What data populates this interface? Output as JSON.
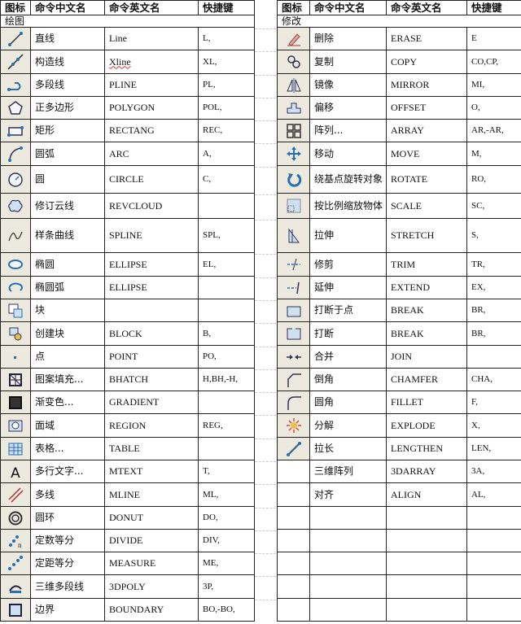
{
  "headers": {
    "icon": "图标",
    "zh": "命令中文名",
    "en": "命令英文名",
    "key": "快捷键"
  },
  "left": {
    "section": "绘图",
    "rows": [
      {
        "icon": "line-icon",
        "zh": "直线",
        "en": "Line",
        "key": "L,"
      },
      {
        "icon": "xline-icon",
        "zh": "构造线",
        "en": "Xline",
        "key": "XL,"
      },
      {
        "icon": "pline-icon",
        "zh": "多段线",
        "en": "PLINE",
        "key": "PL,"
      },
      {
        "icon": "polygon-icon",
        "zh": "正多边形",
        "en": "POLYGON",
        "key": "POL,"
      },
      {
        "icon": "rectangle-icon",
        "zh": "矩形",
        "en": "RECTANG",
        "key": "REC,"
      },
      {
        "icon": "arc-icon",
        "zh": "圆弧",
        "en": "ARC",
        "key": "A,"
      },
      {
        "icon": "circle-icon",
        "zh": "圆",
        "en": "CIRCLE",
        "key": "C,"
      },
      {
        "icon": "revcloud-icon",
        "zh": "修订云线",
        "en": "REVCLOUD",
        "key": ""
      },
      {
        "icon": "spline-icon",
        "zh": "样条曲线",
        "en": "SPLINE",
        "key": "SPL,"
      },
      {
        "icon": "ellipse-icon",
        "zh": "椭圆",
        "en": "ELLIPSE",
        "key": "EL,"
      },
      {
        "icon": "ellipse-arc-icon",
        "zh": "椭圆弧",
        "en": "ELLIPSE",
        "key": ""
      },
      {
        "icon": "block-insert-icon",
        "zh": "块",
        "en": "",
        "key": ""
      },
      {
        "icon": "create-block-icon",
        "zh": "创建块",
        "en": "BLOCK",
        "key": "B,"
      },
      {
        "icon": "point-icon",
        "zh": "点",
        "en": "POINT",
        "key": "PO,"
      },
      {
        "icon": "hatch-icon",
        "zh": "图案填充...",
        "en": "BHATCH",
        "key": "H,BH,-H,"
      },
      {
        "icon": "gradient-icon",
        "zh": "渐变色...",
        "en": "GRADIENT",
        "key": ""
      },
      {
        "icon": "region-icon",
        "zh": "面域",
        "en": "REGION",
        "key": "REG,"
      },
      {
        "icon": "table-icon",
        "zh": "表格...",
        "en": "TABLE",
        "key": ""
      },
      {
        "icon": "mtext-icon",
        "zh": "多行文字...",
        "en": "MTEXT",
        "key": "T,"
      },
      {
        "icon": "mline-icon",
        "zh": "多线",
        "en": "MLINE",
        "key": "ML,"
      },
      {
        "icon": "donut-icon",
        "zh": "圆环",
        "en": "DONUT",
        "key": "DO,"
      },
      {
        "icon": "divide-icon",
        "zh": "定数等分",
        "en": "DIVIDE",
        "key": "DIV,"
      },
      {
        "icon": "measure-icon",
        "zh": "定距等分",
        "en": "MEASURE",
        "key": "ME,"
      },
      {
        "icon": "3dpoly-icon",
        "zh": "三维多段线",
        "en": "3DPOLY",
        "key": "3P,"
      },
      {
        "icon": "boundary-icon",
        "zh": "边界",
        "en": "BOUNDARY",
        "key": "BO,-BO,"
      }
    ]
  },
  "right": {
    "section": "修改",
    "rows": [
      {
        "icon": "erase-icon",
        "zh": "删除",
        "en": "ERASE",
        "key": "E"
      },
      {
        "icon": "copy-icon",
        "zh": "复制",
        "en": "COPY",
        "key": "CO,CP,"
      },
      {
        "icon": "mirror-icon",
        "zh": "镜像",
        "en": "MIRROR",
        "key": "MI,"
      },
      {
        "icon": "offset-icon",
        "zh": "偏移",
        "en": "OFFSET",
        "key": "O,"
      },
      {
        "icon": "array-icon",
        "zh": "阵列...",
        "en": "ARRAY",
        "key": "AR,-AR,"
      },
      {
        "icon": "move-icon",
        "zh": "移动",
        "en": "MOVE",
        "key": "M,"
      },
      {
        "icon": "rotate-icon",
        "zh": "绕基点旋转对象",
        "en": "ROTATE",
        "key": "RO,"
      },
      {
        "icon": "scale-icon",
        "zh": "按比例缩放物体",
        "en": "SCALE",
        "key": "SC,"
      },
      {
        "icon": "stretch-icon",
        "zh": "拉伸",
        "en": "STRETCH",
        "key": "S,"
      },
      {
        "icon": "trim-icon",
        "zh": "修剪",
        "en": "TRIM",
        "key": "TR,"
      },
      {
        "icon": "extend-icon",
        "zh": "延伸",
        "en": "EXTEND",
        "key": "EX,"
      },
      {
        "icon": "break-at-point-icon",
        "zh": "打断于点",
        "en": "BREAK",
        "key": "BR,"
      },
      {
        "icon": "break-icon",
        "zh": "打断",
        "en": "BREAK",
        "key": "BR,"
      },
      {
        "icon": "join-icon",
        "zh": "合并",
        "en": "JOIN",
        "key": ""
      },
      {
        "icon": "chamfer-icon",
        "zh": "倒角",
        "en": "CHAMFER",
        "key": "CHA,"
      },
      {
        "icon": "fillet-icon",
        "zh": "圆角",
        "en": "FILLET",
        "key": "F,"
      },
      {
        "icon": "explode-icon",
        "zh": "分解",
        "en": "EXPLODE",
        "key": "X,"
      },
      {
        "icon": "lengthen-icon",
        "zh": "拉长",
        "en": "LENGTHEN",
        "key": "LEN,"
      },
      {
        "icon": "",
        "zh": "三维阵列",
        "en": "3DARRAY",
        "key": "3A,"
      },
      {
        "icon": "",
        "zh": "对齐",
        "en": "ALIGN",
        "key": "AL,"
      },
      {
        "icon": "",
        "zh": "",
        "en": "",
        "key": ""
      },
      {
        "icon": "",
        "zh": "",
        "en": "",
        "key": ""
      },
      {
        "icon": "",
        "zh": "",
        "en": "",
        "key": ""
      },
      {
        "icon": "",
        "zh": "",
        "en": "",
        "key": ""
      },
      {
        "icon": "",
        "zh": "",
        "en": "",
        "key": ""
      }
    ]
  },
  "colors": {
    "icon_blue": "#2a6fb0",
    "icon_bg": "#ece9df",
    "spellcheck": "#dd3333"
  }
}
